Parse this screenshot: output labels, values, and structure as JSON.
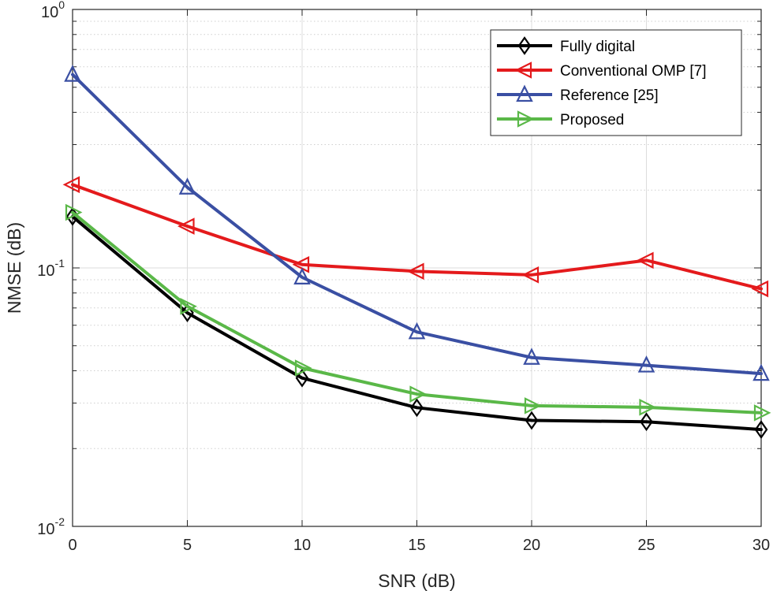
{
  "chart_data": {
    "type": "line",
    "title": "",
    "xlabel": "SNR (dB)",
    "ylabel": "NMSE (dB)",
    "yscale": "log",
    "xlim": [
      0,
      30
    ],
    "ylim": [
      0.01,
      1
    ],
    "grid": true,
    "legend_position": "top-right",
    "x": [
      0,
      5,
      10,
      15,
      20,
      25,
      30
    ],
    "x_ticks": [
      "0",
      "5",
      "10",
      "15",
      "20",
      "25",
      "30"
    ],
    "y_ticks": [
      {
        "value": 1,
        "base": "10",
        "exp": "0"
      },
      {
        "value": 0.1,
        "base": "10",
        "exp": "-1"
      },
      {
        "value": 0.01,
        "base": "10",
        "exp": "-2"
      }
    ],
    "series": [
      {
        "name": "Fully digital",
        "color": "#000000",
        "marker": "diamond",
        "values": [
          0.158,
          0.067,
          0.0375,
          0.0288,
          0.0257,
          0.0254,
          0.0237
        ]
      },
      {
        "name": "Conventional OMP [7]",
        "color": "#e41a1c",
        "marker": "triangle-left",
        "values": [
          0.21,
          0.145,
          0.103,
          0.097,
          0.094,
          0.107,
          0.083
        ]
      },
      {
        "name": "Reference [25]",
        "color": "#3a4fa3",
        "marker": "triangle-up",
        "values": [
          0.56,
          0.205,
          0.092,
          0.0565,
          0.045,
          0.042,
          0.039
        ]
      },
      {
        "name": "Proposed",
        "color": "#5ab848",
        "marker": "triangle-right",
        "values": [
          0.164,
          0.071,
          0.041,
          0.0325,
          0.0293,
          0.0289,
          0.0275
        ]
      }
    ]
  }
}
